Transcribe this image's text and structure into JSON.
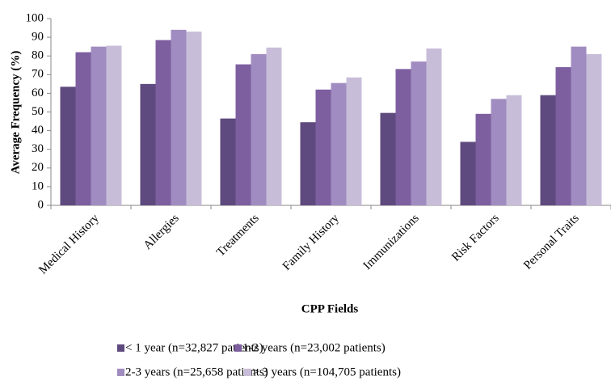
{
  "chart_data": {
    "type": "bar",
    "x_label": "CPP Fields",
    "y_label": "Average Frequency (%)",
    "categories": [
      "Medical History",
      "Allergies",
      "Treatments",
      "Family History",
      "Immunizations",
      "Risk Factors",
      "Personal Traits"
    ],
    "series": [
      {
        "name": "< 1 year (n=32,827 patients)",
        "color": "#5e4a7e",
        "values": [
          63.5,
          65,
          46.5,
          44.5,
          49.5,
          34,
          59
        ]
      },
      {
        "name": "1-2 years (n=23,002 patients)",
        "color": "#7d5fa0",
        "values": [
          82,
          88.5,
          75.5,
          62,
          73,
          49,
          74
        ]
      },
      {
        "name": "2-3 years (n=25,658 patients)",
        "color": "#a08cc0",
        "values": [
          85,
          94,
          81,
          65.5,
          77,
          57,
          85
        ]
      },
      {
        "name": "> 3 years (n=104,705 patients)",
        "color": "#c8bdd9",
        "values": [
          85.5,
          93,
          84.5,
          68.5,
          84,
          59,
          81
        ]
      }
    ],
    "ylim": [
      0,
      100
    ],
    "yticks": [
      0,
      10,
      20,
      30,
      40,
      50,
      60,
      70,
      80,
      90,
      100
    ],
    "grid": false,
    "legend": "bottom"
  }
}
